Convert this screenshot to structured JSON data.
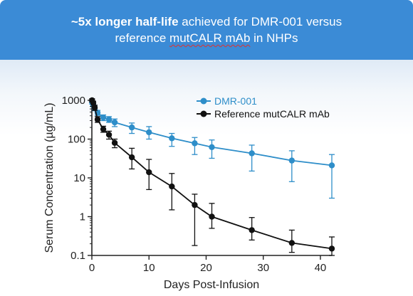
{
  "header": {
    "title_bold": "~5x longer half-life",
    "title_rest": " achieved for DMR-001 versus",
    "title_line2_pre": "reference ",
    "title_line2_squiggle": "mutCALR mAb",
    "title_line2_post": " in NHPs",
    "bg_color": "#3b8bd6"
  },
  "chart_data": {
    "type": "scatter",
    "title": "",
    "xlabel": "Days Post-Infusion",
    "ylabel": "Serum Concentration (µg/mL)",
    "xlim": [
      0,
      42
    ],
    "ylim": [
      0.1,
      1000
    ],
    "yscale": "log",
    "x_ticks": [
      0,
      10,
      20,
      30,
      40
    ],
    "y_ticks": [
      {
        "value": 1000,
        "label": "1000"
      },
      {
        "value": 100,
        "label": "100"
      },
      {
        "value": 10,
        "label": "10"
      },
      {
        "value": 1,
        "label": "1"
      },
      {
        "value": 0.1,
        "label": "0.1"
      }
    ],
    "legend_position": "top-right",
    "series": [
      {
        "name": "DMR-001",
        "color": "#2e8ec9",
        "points": [
          {
            "x": 0.04,
            "y": 900,
            "lo": 800,
            "hi": 1000
          },
          {
            "x": 0.25,
            "y": 760,
            "lo": 680,
            "hi": 850
          },
          {
            "x": 0.5,
            "y": 620,
            "lo": 540,
            "hi": 700
          },
          {
            "x": 1,
            "y": 480,
            "lo": 410,
            "hi": 550
          },
          {
            "x": 2,
            "y": 360,
            "lo": 300,
            "hi": 420
          },
          {
            "x": 3,
            "y": 320,
            "lo": 270,
            "hi": 380
          },
          {
            "x": 4,
            "y": 270,
            "lo": 210,
            "hi": 330
          },
          {
            "x": 7,
            "y": 200,
            "lo": 140,
            "hi": 260
          },
          {
            "x": 10,
            "y": 150,
            "lo": 100,
            "hi": 210
          },
          {
            "x": 14,
            "y": 105,
            "lo": 65,
            "hi": 140
          },
          {
            "x": 18,
            "y": 78,
            "lo": 40,
            "hi": 110
          },
          {
            "x": 21,
            "y": 62,
            "lo": 32,
            "hi": 95
          },
          {
            "x": 28,
            "y": 43,
            "lo": 15,
            "hi": 70
          },
          {
            "x": 35,
            "y": 28,
            "lo": 8,
            "hi": 50
          },
          {
            "x": 42,
            "y": 21,
            "lo": 3,
            "hi": 40
          }
        ]
      },
      {
        "name": "Reference mutCALR mAb",
        "color": "#111111",
        "points": [
          {
            "x": 0.04,
            "y": 1000,
            "lo": 900,
            "hi": 1100
          },
          {
            "x": 0.25,
            "y": 850,
            "lo": 700,
            "hi": 950
          },
          {
            "x": 0.5,
            "y": 650,
            "lo": 550,
            "hi": 750
          },
          {
            "x": 1,
            "y": 320,
            "lo": 270,
            "hi": 380
          },
          {
            "x": 2,
            "y": 180,
            "lo": 150,
            "hi": 215
          },
          {
            "x": 3,
            "y": 130,
            "lo": 100,
            "hi": 160
          },
          {
            "x": 4,
            "y": 80,
            "lo": 60,
            "hi": 100
          },
          {
            "x": 7,
            "y": 34,
            "lo": 17,
            "hi": 58
          },
          {
            "x": 10,
            "y": 14,
            "lo": 5,
            "hi": 30
          },
          {
            "x": 14,
            "y": 6,
            "lo": 1.5,
            "hi": 13
          },
          {
            "x": 18,
            "y": 2,
            "lo": 0.18,
            "hi": 3.8
          },
          {
            "x": 21,
            "y": 1,
            "lo": 0.5,
            "hi": 2.2
          },
          {
            "x": 28,
            "y": 0.45,
            "lo": 0.25,
            "hi": 0.95
          },
          {
            "x": 35,
            "y": 0.21,
            "lo": 0.12,
            "hi": 0.45
          },
          {
            "x": 42,
            "y": 0.15,
            "lo": 0.1,
            "hi": 0.3
          }
        ]
      }
    ]
  }
}
